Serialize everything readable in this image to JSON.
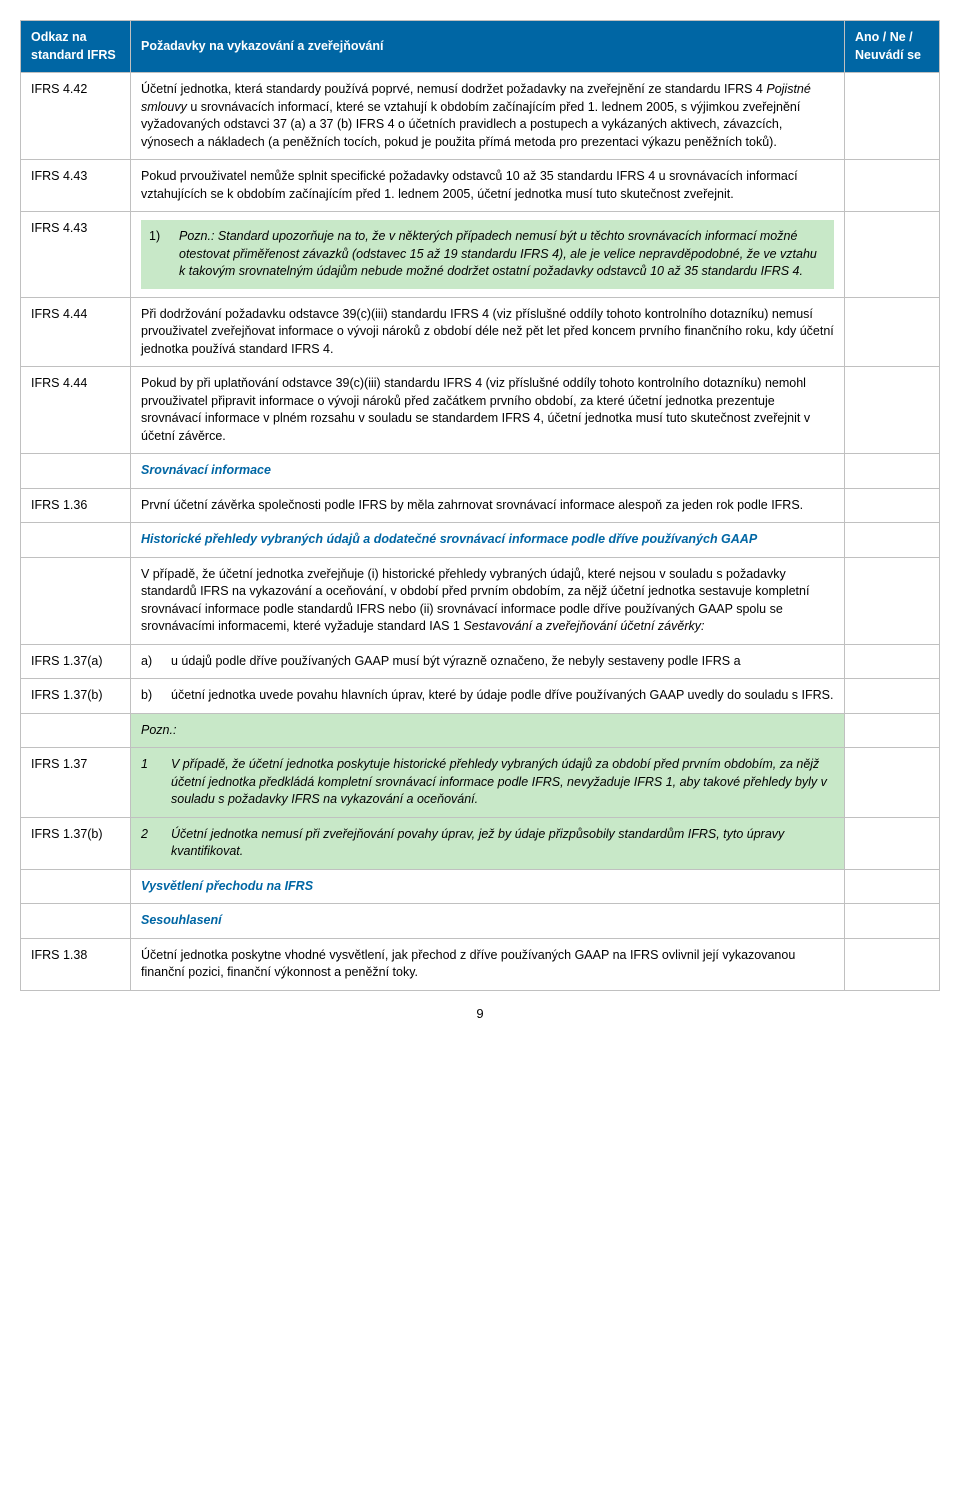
{
  "colors": {
    "header_bg": "#0066a4",
    "header_fg": "#ffffff",
    "border": "#c0c0c0",
    "note_bg": "#c8e8c8",
    "subhead_blue": "#0066a4"
  },
  "header": {
    "col1": "Odkaz na standard IFRS",
    "col2": "Požadavky na vykazování a zveřejňování",
    "col3": "Ano / Ne / Neuvádí se"
  },
  "rows": [
    {
      "ref": "IFRS 4.42",
      "body": "Účetní jednotka, která standardy používá poprvé, nemusí dodržet požadavky na zveřejnění ze standardu IFRS 4 Pojistné smlouvy u srovnávacích  informací, které se vztahují k obdobím začínajícím před 1. lednem 2005, s výjimkou zveřejnění vyžadovaných odstavci 37 (a) a 37 (b) IFRS 4 o účetních pravidlech a postupech a vykázaných aktivech, závazcích, výnosech a nákladech (a peněžních tocích, pokud je použita přímá metoda pro prezentaci výkazu peněžních toků).",
      "italic_segment": "Pojistné smlouvy"
    },
    {
      "ref": "IFRS 4.43",
      "body": "Pokud prvouživatel nemůže splnit specifické požadavky odstavců 10 až 35 standardu IFRS 4 u srovnávacích informací vztahujících se k obdobím začínajícím před 1. lednem 2005, účetní jednotka musí tuto skutečnost zveřejnit."
    },
    {
      "ref": "IFRS 4.43",
      "note_num": "1)",
      "note_label": "Pozn.:",
      "note_body": "Standard upozorňuje na to, že v některých případech nemusí být u těchto srovnávacích informací možné otestovat přiměřenost závazků (odstavec 15 až 19 standardu IFRS 4), ale je velice nepravděpodobné, že ve vztahu k takovým srovnatelným údajům nebude možné dodržet ostatní požadavky odstavců 10 až 35 standardu IFRS 4.",
      "green": true
    },
    {
      "ref": "IFRS 4.44",
      "body_pre": "Při dodržování požadavku odstavce 39(c)(iii) standardu IFRS 4 (",
      "body_mid": "viz příslušné oddíly tohoto kontrolního dotazníku",
      "body_post": ") nemusí prvouživatel zveřejňovat informace o vývoji nároků z období déle než pět let před koncem prvního finančního roku, kdy účetní jednotka používá standard IFRS 4."
    },
    {
      "ref": "IFRS 4.44",
      "body": "Pokud by při uplatňování odstavce 39(c)(iii) standardu IFRS 4 (viz příslušné oddíly tohoto kontrolního dotazníku) nemohl prvouživatel připravit informace o vývoji nároků před začátkem prvního období, za které účetní jednotka prezentuje srovnávací informace v plném rozsahu v souladu se standardem IFRS 4, účetní jednotka musí tuto skutečnost zveřejnit v účetní závěrce."
    },
    {
      "ref": "",
      "subhead": "Srovnávací informace"
    },
    {
      "ref": "IFRS 1.36",
      "body": "První účetní závěrka společnosti podle IFRS by měla zahrnovat srovnávací informace alespoň za jeden rok podle IFRS."
    },
    {
      "ref": "",
      "subhead": "Historické přehledy vybraných údajů a dodatečné srovnávací informace podle dříve používaných GAAP"
    },
    {
      "ref": "",
      "body_pre": "V případě, že účetní jednotka zveřejňuje (i) historické přehledy vybraných údajů, které nejsou v souladu s požadavky standardů IFRS na vykazování a oceňování, v období před prvním obdobím, za nějž účetní jednotka sestavuje kompletní srovnávací informace  podle standardů IFRS nebo (ii) srovnávací informace podle dříve používaných GAAP  spolu se srovnávacími informacemi, které vyžaduje standard IAS 1 ",
      "body_italic": "Sestavování a zveřejňování účetní závěrky:",
      "body_post": ""
    },
    {
      "ref": "IFRS 1.37(a)",
      "list_letter": "a)",
      "body": "u údajů podle dříve používaných GAAP musí být výrazně označeno, že nebyly sestaveny podle IFRS a"
    },
    {
      "ref": "IFRS 1.37(b)",
      "list_letter": "b)",
      "body": "účetní jednotka uvede povahu hlavních úprav, které by údaje podle dříve používaných GAAP uvedly do souladu s IFRS."
    },
    {
      "ref": "",
      "pozn_header": "Pozn.:"
    },
    {
      "ref": "IFRS 1.37",
      "list_letter": "1",
      "body": "V případě, že účetní jednotka poskytuje historické přehledy vybraných údajů za období před prvním obdobím, za nějž účetní jednotka předkládá kompletní srovnávací informace podle IFRS, nevyžaduje IFRS 1, aby takové přehledy byly v souladu s požadavky IFRS na vykazování a oceňování.",
      "green": true,
      "italic_all": true
    },
    {
      "ref": "IFRS 1.37(b)",
      "list_letter": "2",
      "body": "Účetní jednotka nemusí při zveřejňování povahy úprav, jež by údaje přizpůsobily standardům IFRS, tyto úpravy kvantifikovat.",
      "green": true,
      "italic_all": true
    },
    {
      "ref": "",
      "subhead": "Vysvětlení přechodu na IFRS"
    },
    {
      "ref": "",
      "subhead": "Sesouhlasení"
    },
    {
      "ref": "IFRS 1.38",
      "body": "Účetní jednotka poskytne vhodné vysvětlení, jak přechod z dříve používaných GAAP na IFRS ovlivnil její vykazovanou finanční pozici, finanční výkonnost a peněžní toky."
    }
  ],
  "page_number": "9"
}
